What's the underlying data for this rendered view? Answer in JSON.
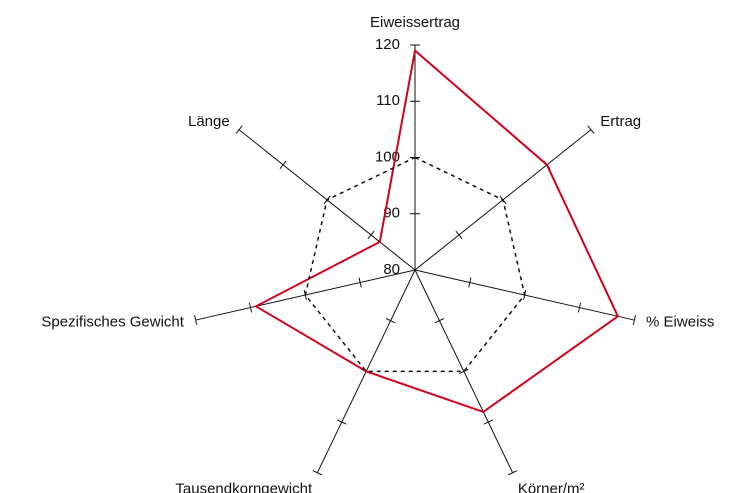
{
  "chart_data": {
    "type": "radar",
    "categories": [
      "Eiweissertrag",
      "Ertrag",
      "% Eiweiss",
      "Körner/m²",
      "Tausendkorngewicht",
      "Spezifisches Gewicht",
      "Länge"
    ],
    "ylim": [
      80,
      120
    ],
    "yticks": [
      80,
      90,
      100,
      110,
      120
    ],
    "series": [
      {
        "color": "#d0021b",
        "dash": false,
        "values": [
          119,
          110,
          117,
          108,
          100,
          109,
          88
        ]
      },
      {
        "color": "#111111",
        "dash": true,
        "values": [
          100,
          100,
          100,
          100,
          100,
          100,
          100
        ]
      }
    ]
  }
}
